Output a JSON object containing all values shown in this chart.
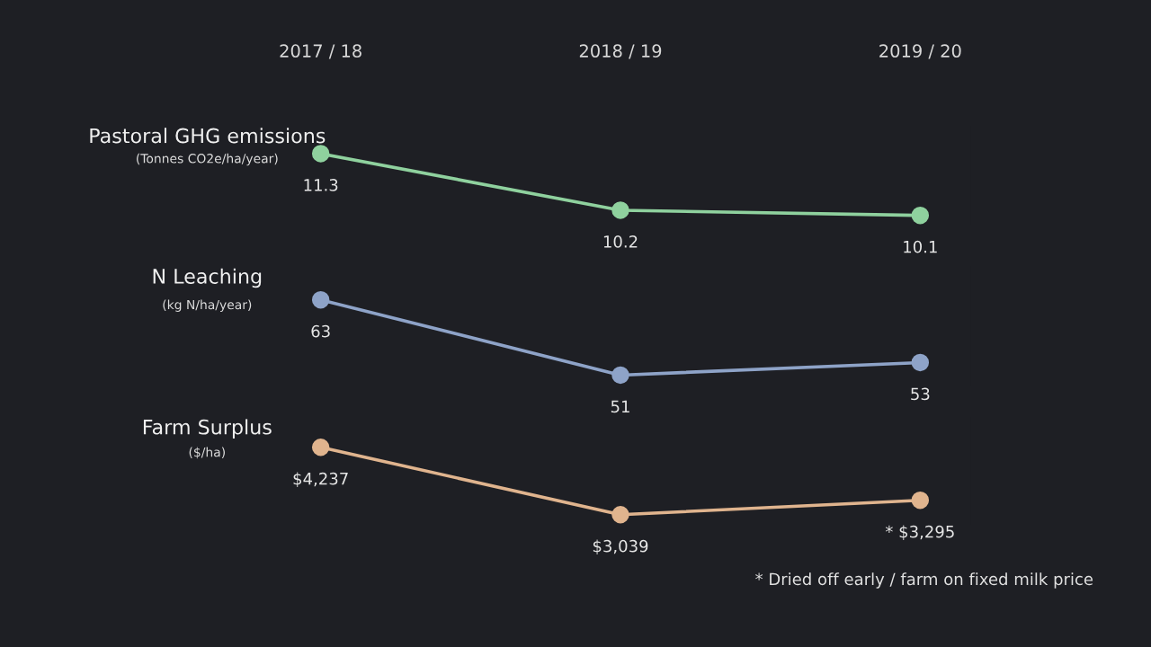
{
  "chart_data": [
    {
      "type": "line",
      "title": "Pastoral GHG emissions",
      "subtitle": "(Tonnes CO2e/ha/year)",
      "categories": [
        "2017 / 18",
        "2018 / 19",
        "2019 / 20"
      ],
      "tick_labels": "x",
      "marker": "circle",
      "series": [
        {
          "color": "#8fd19e",
          "values": [
            11.3,
            10.2,
            10.1
          ],
          "value_labels": [
            "11.3",
            "10.2",
            "10.1"
          ]
        }
      ]
    },
    {
      "type": "line",
      "title": "N Leaching",
      "subtitle": "(kg N/ha/year)",
      "categories": [
        null,
        null,
        null
      ],
      "marker": "circle",
      "series": [
        {
          "color": "#8ea3c8",
          "values": [
            63,
            51,
            53
          ],
          "value_labels": [
            "63",
            "51",
            "53"
          ]
        }
      ]
    },
    {
      "type": "line",
      "title": "Farm Surplus",
      "subtitle": "($/ha)",
      "categories": [
        null,
        null,
        null
      ],
      "marker": "circle",
      "series": [
        {
          "color": "#e0b48e",
          "values": [
            4237,
            3039,
            3295
          ],
          "value_labels": [
            "$4,237",
            "$3,039",
            "* $3,295"
          ]
        }
      ],
      "annotations": [
        "* Dried off early / farm on fixed milk price"
      ]
    }
  ]
}
